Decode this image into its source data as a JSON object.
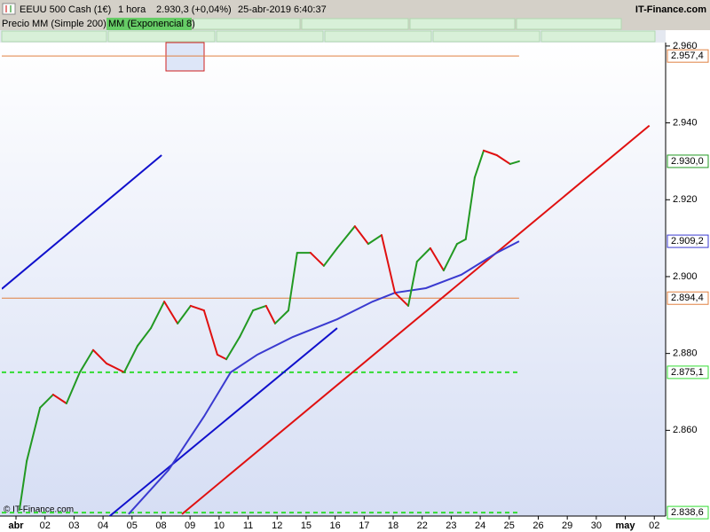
{
  "header": {
    "instrument": "EEUU 500 Cash (1€)",
    "interval": "1 hora",
    "quote": "2.930,3 (+0,04%)",
    "datetime": "25-abr-2019 6:40:37",
    "brand": "IT-Finance.com"
  },
  "chart_data": {
    "type": "line",
    "price_label": "Precio",
    "watermark": "© IT-Finance.com",
    "xlim": [
      -0.49,
      22.39
    ],
    "ylim": [
      2837.7,
      2960.9
    ],
    "xticks": [
      {
        "value": 0,
        "label": "abr"
      },
      {
        "value": 1,
        "label": "02"
      },
      {
        "value": 2,
        "label": "03"
      },
      {
        "value": 3,
        "label": "04"
      },
      {
        "value": 4,
        "label": "05"
      },
      {
        "value": 5,
        "label": "08"
      },
      {
        "value": 6,
        "label": "09"
      },
      {
        "value": 7,
        "label": "10"
      },
      {
        "value": 8,
        "label": "11"
      },
      {
        "value": 9,
        "label": "12"
      },
      {
        "value": 10,
        "label": "15"
      },
      {
        "value": 11,
        "label": "16"
      },
      {
        "value": 12,
        "label": "17"
      },
      {
        "value": 13,
        "label": "18"
      },
      {
        "value": 14,
        "label": "22"
      },
      {
        "value": 15,
        "label": "23"
      },
      {
        "value": 16,
        "label": "24"
      },
      {
        "value": 17,
        "label": "25"
      },
      {
        "value": 18,
        "label": "26"
      },
      {
        "value": 19,
        "label": "29"
      },
      {
        "value": 20,
        "label": "30"
      },
      {
        "value": 21,
        "label": "may"
      },
      {
        "value": 22,
        "label": "02"
      }
    ],
    "yticks": [
      {
        "value": 2960,
        "label": "2.960"
      },
      {
        "value": 2940,
        "label": "2.940"
      },
      {
        "value": 2920,
        "label": "2.920"
      },
      {
        "value": 2900,
        "label": "2.900"
      },
      {
        "value": 2880,
        "label": "2.880"
      },
      {
        "value": 2860,
        "label": "2.860"
      }
    ],
    "series": [
      {
        "name": "MM (Simple 200)",
        "color": "#3a3ad0",
        "last_label": "2.909,2",
        "x": [
          3.88,
          5.26,
          6.48,
          7.4,
          8.32,
          9.54,
          11.07,
          12.29,
          13.06,
          14.13,
          15.35,
          16.57,
          17.34
        ],
        "values": [
          2838.2,
          2849.7,
          2863.6,
          2875.1,
          2879.7,
          2884.3,
          2888.9,
          2893.5,
          2895.8,
          2897.0,
          2900.5,
          2906.2,
          2909.2
        ]
      },
      {
        "name": "MM (Exponencial 8)",
        "color": "#229922",
        "down_color": "#e01010",
        "last_label": "2.930,0",
        "x": [
          0.12,
          0.37,
          0.83,
          1.28,
          1.74,
          2.2,
          2.66,
          3.12,
          3.73,
          4.19,
          4.65,
          5.11,
          5.57,
          6.02,
          6.48,
          6.94,
          7.25,
          7.71,
          8.17,
          8.62,
          8.93,
          9.39,
          9.69,
          10.15,
          10.61,
          11.07,
          11.68,
          12.14,
          12.6,
          13.06,
          13.52,
          13.82,
          14.28,
          14.74,
          15.2,
          15.5,
          15.81,
          16.12,
          16.57,
          17.03,
          17.34
        ],
        "values": [
          2839.3,
          2852.0,
          2865.9,
          2869.3,
          2867.0,
          2875.1,
          2880.9,
          2877.4,
          2875.1,
          2882.0,
          2886.6,
          2893.5,
          2887.8,
          2892.4,
          2891.2,
          2879.7,
          2878.5,
          2884.3,
          2891.2,
          2892.4,
          2887.8,
          2891.2,
          2906.2,
          2906.2,
          2902.8,
          2907.4,
          2913.1,
          2908.5,
          2910.8,
          2895.8,
          2892.4,
          2903.9,
          2907.4,
          2901.6,
          2908.5,
          2909.7,
          2925.8,
          2932.8,
          2931.6,
          2929.3,
          2930.0
        ]
      }
    ],
    "trendlines": [
      {
        "color": "#1010cc",
        "x": [
          -0.49,
          5.02
        ],
        "values": [
          2896.8,
          2931.6
        ]
      },
      {
        "color": "#1010cc",
        "x": [
          3.12,
          11.07
        ],
        "values": [
          2837.0,
          2886.6
        ]
      },
      {
        "color": "#e01010",
        "x": [
          5.72,
          21.83
        ],
        "values": [
          2838.2,
          2939.3
        ]
      }
    ],
    "hlines": [
      {
        "value": 2957.4,
        "label": "2.957,4",
        "color": "#e08040",
        "dashed": false,
        "end": 17.34
      },
      {
        "value": 2894.4,
        "label": "2.894,4",
        "color": "#e08040",
        "dashed": false,
        "end": 17.34
      },
      {
        "value": 2875.1,
        "label": "2.875,1",
        "color": "#33dd33",
        "dashed": true,
        "end": 17.34
      },
      {
        "value": 2838.6,
        "label": "2.838,6",
        "color": "#33dd33",
        "dashed": true,
        "end": 17.34
      }
    ]
  }
}
